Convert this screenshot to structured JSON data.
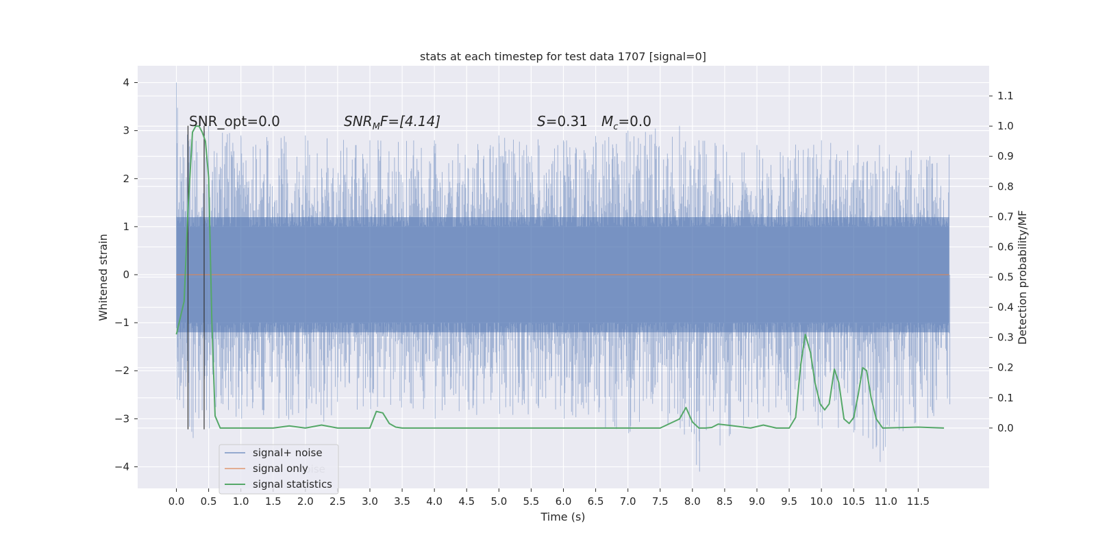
{
  "chart_data": {
    "type": "line",
    "title": "stats at each timestep for test data 1707 [signal=0]",
    "xlabel": "Time (s)",
    "ylabel": "Whitened strain",
    "ylabel_right": "Detection probability/MF",
    "xlim": [
      -0.6,
      12.6
    ],
    "ylim": [
      -4.45,
      4.35
    ],
    "ylim_right": [
      -0.2,
      1.2
    ],
    "x_ticks": [
      0.0,
      0.5,
      1.0,
      1.5,
      2.0,
      2.5,
      3.0,
      3.5,
      4.0,
      4.5,
      5.0,
      5.5,
      6.0,
      6.5,
      7.0,
      7.5,
      8.0,
      8.5,
      9.0,
      9.5,
      10.0,
      10.5,
      11.0,
      11.5
    ],
    "x_tick_labels": [
      "0.0",
      "0.5",
      "1.0",
      "1.5",
      "2.0",
      "2.5",
      "3.0",
      "3.5",
      "4.0",
      "4.5",
      "5.0",
      "5.5",
      "6.0",
      "6.5",
      "7.0",
      "7.5",
      "8.0",
      "8.5",
      "9.0",
      "9.5",
      "10.0",
      "10.5",
      "11.0",
      "11.5"
    ],
    "y_ticks": [
      4,
      3,
      2,
      1,
      0,
      -1,
      -2,
      -3,
      -4
    ],
    "y_tick_labels": [
      "4",
      "3",
      "2",
      "1",
      "0",
      "−1",
      "−2",
      "−3",
      "−4"
    ],
    "y_right_ticks": [
      1.1,
      1.0,
      0.9,
      0.8,
      0.7,
      0.6,
      0.5,
      0.4,
      0.3,
      0.2,
      0.1,
      0.0
    ],
    "y_right_tick_labels": [
      "1.1",
      "1.0",
      "0.9",
      "0.8",
      "0.7",
      "0.6",
      "0.5",
      "0.4",
      "0.3",
      "0.2",
      "0.1",
      "0.0"
    ],
    "grid": true,
    "legend_position": "lower-left",
    "annotations": {
      "snr_opt": "SNR_opt=0.0",
      "snr_mf_prefix": "SNR",
      "snr_mf_sub": "M",
      "snr_mf_suffix": "F=[4.14]",
      "s_symbol": "S",
      "s_value": "=0.31",
      "mc_symbol": "M",
      "mc_sub": "c",
      "mc_value": "=0.0"
    },
    "series": [
      {
        "name": "signal+ noise",
        "color": "#4c72b0",
        "axis": "left",
        "x_range": [
          0.0,
          11.98
        ],
        "band_envelope": {
          "x": [
            0.0,
            0.25,
            0.5,
            1.0,
            2.0,
            3.0,
            4.0,
            5.0,
            6.0,
            7.0,
            7.8,
            8.1,
            9.0,
            10.0,
            10.9,
            11.98
          ],
          "upper": [
            4.0,
            2.9,
            3.1,
            2.9,
            2.9,
            2.8,
            2.8,
            2.9,
            2.8,
            3.0,
            3.1,
            2.8,
            2.7,
            2.8,
            2.7,
            2.5
          ],
          "lower": [
            -2.6,
            -3.4,
            -3.2,
            -3.0,
            -3.2,
            -2.8,
            -3.0,
            -2.9,
            -3.0,
            -3.3,
            -3.2,
            -4.1,
            -3.0,
            -3.2,
            -3.9,
            -2.7
          ]
        }
      },
      {
        "name": "signal only",
        "color": "#dd8452",
        "axis": "left",
        "x": [
          0.0,
          11.98
        ],
        "y": [
          0.0,
          0.0
        ]
      },
      {
        "name": "signal statistics",
        "color": "#55a868",
        "axis": "right",
        "x": [
          0.0,
          0.12,
          0.18,
          0.25,
          0.3,
          0.35,
          0.4,
          0.45,
          0.5,
          0.55,
          0.6,
          0.68,
          0.75,
          1.0,
          1.5,
          1.75,
          2.0,
          2.25,
          2.5,
          3.0,
          3.1,
          3.2,
          3.3,
          3.4,
          3.5,
          4.0,
          5.0,
          6.0,
          7.0,
          7.5,
          7.8,
          7.9,
          8.0,
          8.1,
          8.2,
          8.3,
          8.4,
          8.6,
          8.9,
          9.1,
          9.3,
          9.5,
          9.6,
          9.68,
          9.75,
          9.83,
          9.9,
          9.98,
          10.05,
          10.12,
          10.2,
          10.27,
          10.35,
          10.43,
          10.5,
          10.57,
          10.64,
          10.7,
          10.77,
          10.85,
          10.95,
          11.5,
          11.9
        ],
        "y": [
          0.31,
          0.42,
          0.72,
          0.98,
          1.0,
          1.0,
          0.98,
          0.95,
          0.83,
          0.35,
          0.04,
          0.0,
          0.0,
          0.0,
          0.0,
          0.007,
          0.0,
          0.01,
          0.0,
          0.0,
          0.055,
          0.05,
          0.015,
          0.003,
          0.0,
          0.0,
          0.0,
          0.0,
          0.0,
          0.0,
          0.03,
          0.068,
          0.02,
          0.0,
          0.0,
          0.002,
          0.013,
          0.008,
          0.0,
          0.01,
          0.0,
          0.0,
          0.035,
          0.21,
          0.31,
          0.25,
          0.15,
          0.08,
          0.06,
          0.08,
          0.195,
          0.15,
          0.03,
          0.015,
          0.035,
          0.11,
          0.2,
          0.19,
          0.1,
          0.03,
          0.0,
          0.003,
          0.0
        ]
      },
      {
        "name": "",
        "color": "#333333",
        "axis": "left",
        "type": "vertical-markers",
        "x": [
          0.18,
          0.43
        ],
        "y_range": [
          -3.22,
          3.1
        ]
      }
    ],
    "legend": {
      "entries": [
        "signal+ noise",
        "signal only",
        "signal statistics"
      ],
      "overlapped_text": "noise"
    }
  }
}
